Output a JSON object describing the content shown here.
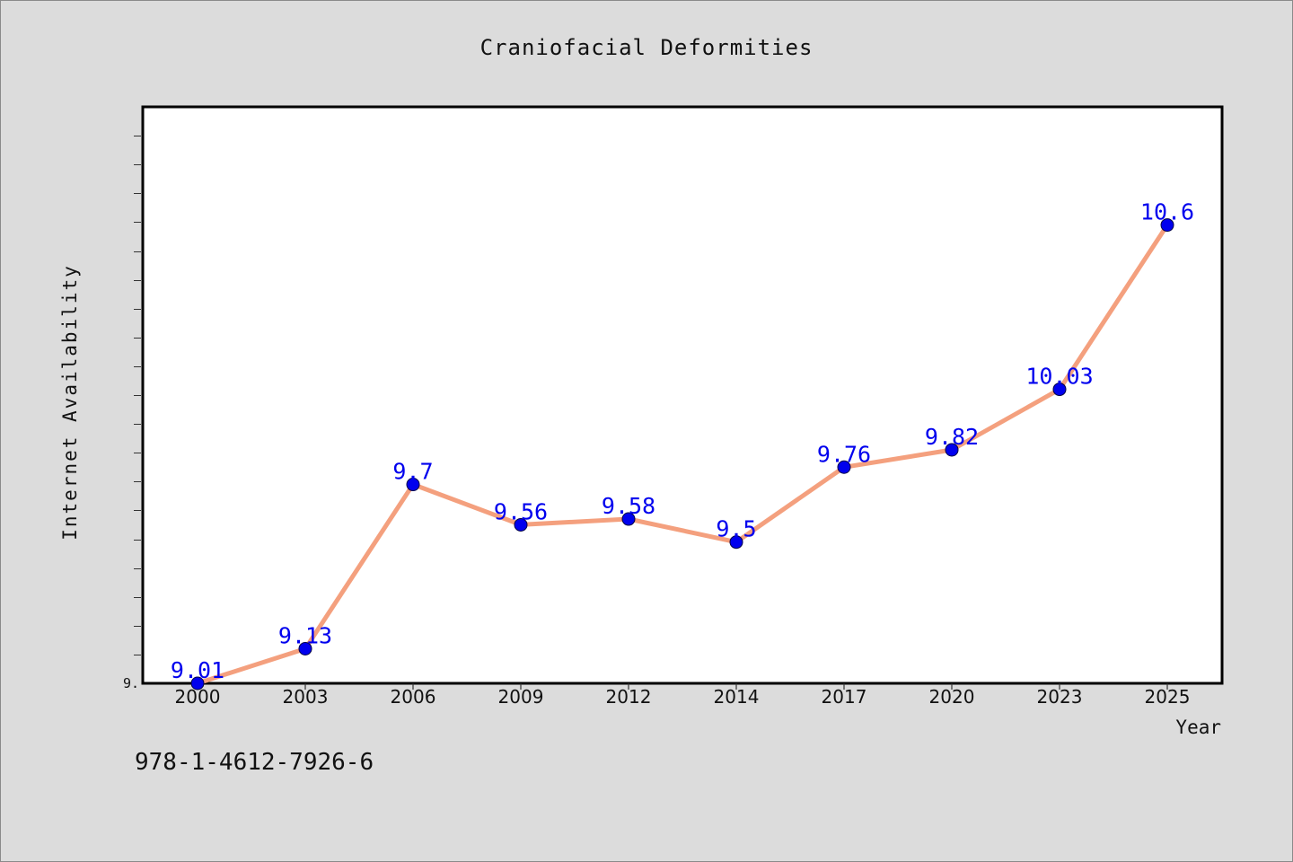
{
  "footer": {
    "code": "978-1-4612-7926-6"
  },
  "colors": {
    "background": "#dcdcdc",
    "plot_background": "#ffffff",
    "line": "#f4a07e",
    "marker": "#0000ee",
    "data_label": "#0000ee",
    "axis_text": "#111111"
  },
  "chart_data": {
    "type": "line",
    "title": "Craniofacial Deformities",
    "xlabel": "Year",
    "ylabel": "Internet Availability",
    "categories": [
      "2000",
      "2003",
      "2006",
      "2009",
      "2012",
      "2014",
      "2017",
      "2020",
      "2023",
      "2025"
    ],
    "series": [
      {
        "values": [
          9.01,
          9.13,
          9.7,
          9.56,
          9.58,
          9.5,
          9.76,
          9.82,
          10.03,
          10.6
        ]
      }
    ],
    "data_labels": [
      "9.01",
      "9.13",
      "9.7",
      "9.56",
      "9.58",
      "9.5",
      "9.76",
      "9.82",
      "10.03",
      "10.6"
    ],
    "y_tick_labels": [
      "9."
    ],
    "ylim": [
      9.01,
      11.01
    ],
    "y_minor_tick_step": 0.1,
    "grid": false,
    "legend": "none",
    "markers": true
  }
}
